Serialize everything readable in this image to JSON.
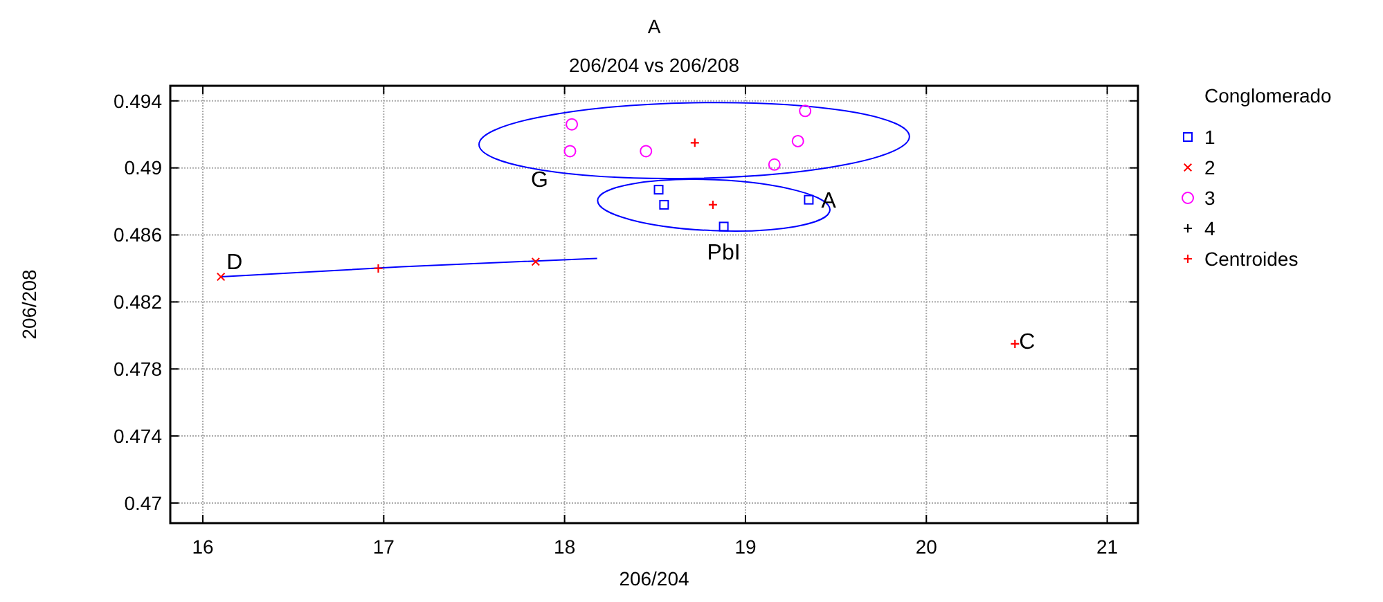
{
  "chart_data": {
    "type": "scatter",
    "title": "A",
    "subtitle": "206/204 vs 206/208",
    "xlabel": "206/204",
    "ylabel": "206/208",
    "legend_title": "Conglomerado",
    "legend": "right",
    "grid": true,
    "xlim": [
      15.82,
      21.17
    ],
    "ylim": [
      0.4688,
      0.4949
    ],
    "xticks": [
      16,
      17,
      18,
      19,
      20,
      21
    ],
    "yticks": [
      0.47,
      0.474,
      0.478,
      0.482,
      0.486,
      0.49,
      0.494
    ],
    "series": [
      {
        "name": "1",
        "color": "#0000ff",
        "marker": "square",
        "x": [
          18.52,
          18.55,
          18.88,
          19.35
        ],
        "values": [
          0.4887,
          0.4878,
          0.4865,
          0.4881
        ]
      },
      {
        "name": "2",
        "color": "#ff0000",
        "marker": "x",
        "x": [
          16.1,
          17.84
        ],
        "values": [
          0.4835,
          0.4844
        ]
      },
      {
        "name": "3",
        "color": "#ff00ff",
        "marker": "circle",
        "x": [
          18.04,
          18.03,
          18.45,
          19.33,
          19.29,
          19.16
        ],
        "values": [
          0.4926,
          0.491,
          0.491,
          0.4934,
          0.4916,
          0.4902
        ]
      },
      {
        "name": "4",
        "color": "#000000",
        "marker": "plus"
      },
      {
        "name": "Centroides",
        "color": "#ff0000",
        "marker": "plus",
        "x": [
          18.82,
          16.97,
          18.72,
          20.49
        ],
        "values": [
          0.4878,
          0.484,
          0.4915,
          0.4795
        ]
      },
      {
        "type": "line",
        "color": "#0000ff",
        "marker": "none",
        "x": [
          16.1,
          17.1,
          18.18
        ],
        "values": [
          0.4835,
          0.4841,
          0.4846
        ]
      }
    ],
    "annotations": [
      {
        "text": "G",
        "x": 18.03,
        "y": 0.491
      },
      {
        "text": "A",
        "x": 19.35,
        "y": 0.4881
      },
      {
        "text": "PbI",
        "x": 18.88,
        "y": 0.4865
      },
      {
        "text": "D",
        "x": 16.1,
        "y": 0.4835
      },
      {
        "text": "C",
        "x": 20.49,
        "y": 0.4795
      }
    ]
  }
}
